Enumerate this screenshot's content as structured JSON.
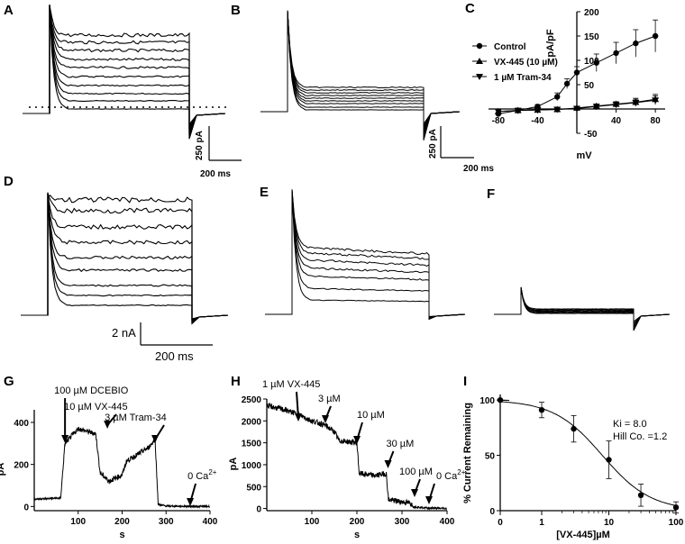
{
  "panels": {
    "a": "A",
    "b": "B",
    "c": "C",
    "d": "D",
    "e": "E",
    "f": "F",
    "g": "G",
    "h": "H",
    "i": "I"
  },
  "scalebars": {
    "a_y": "250 pA",
    "a_x": "200 ms",
    "b_y": "250 pA",
    "b_x": "200 ms",
    "def_y": "2 nA",
    "def_x": "200 ms"
  },
  "chart_data": [
    {
      "id": "C",
      "type": "line",
      "xlabel": "mV",
      "ylabel": "pA/pF",
      "x": [
        -80,
        -60,
        -40,
        -20,
        0,
        20,
        40,
        60,
        80
      ],
      "xlim": [
        -90,
        90
      ],
      "ylim": [
        -50,
        200
      ],
      "xticks": [
        -80,
        -40,
        40,
        80
      ],
      "yticks": [
        -50,
        50,
        100,
        150,
        200
      ],
      "series": [
        {
          "name": "Control",
          "marker": "circle",
          "values": [
            -10,
            -3,
            5,
            25,
            52,
            75,
            95,
            115,
            135,
            150
          ],
          "x": [
            -80,
            -60,
            -40,
            -20,
            -10,
            0,
            20,
            40,
            60,
            80
          ],
          "err": [
            4,
            3,
            4,
            8,
            10,
            12,
            18,
            22,
            28,
            33
          ]
        },
        {
          "name": "VX-445 (10 µM)",
          "marker": "triangle-up",
          "values": [
            -5,
            -3,
            -2,
            -1,
            2,
            6,
            10,
            14,
            20
          ],
          "err": [
            2,
            2,
            2,
            2,
            3,
            4,
            5,
            8,
            10
          ]
        },
        {
          "name": "1 µM Tram-34",
          "marker": "triangle-down",
          "values": [
            -5,
            -3,
            -2,
            -1,
            1,
            5,
            9,
            13,
            18
          ],
          "err": [
            2,
            2,
            2,
            2,
            3,
            4,
            5,
            7,
            9
          ]
        }
      ]
    },
    {
      "id": "G",
      "type": "line",
      "xlabel": "s",
      "ylabel": "pA",
      "xlim": [
        0,
        400
      ],
      "ylim": [
        -20,
        460
      ],
      "xticks": [
        100,
        200,
        300,
        400
      ],
      "yticks": [
        0,
        200,
        400
      ],
      "series": [
        {
          "name": "current",
          "x": [
            0,
            60,
            70,
            100,
            140,
            150,
            170,
            200,
            210,
            260,
            275,
            282,
            300,
            400
          ],
          "values": [
            35,
            40,
            300,
            370,
            345,
            160,
            120,
            150,
            215,
            280,
            320,
            10,
            2,
            0
          ]
        }
      ],
      "annotations": [
        {
          "text": "100 µM DCEBIO",
          "x": 70
        },
        {
          "text": "10 µM VX-445",
          "x": 150
        },
        {
          "text": "3 µM Tram-34",
          "x": 275
        },
        {
          "text": "0 Ca",
          "sup": "2+",
          "x": 355
        }
      ]
    },
    {
      "id": "H",
      "type": "line",
      "xlabel": "s",
      "ylabel": "pA",
      "xlim": [
        0,
        400
      ],
      "ylim": [
        -50,
        2500
      ],
      "xticks": [
        100,
        200,
        300,
        400
      ],
      "yticks": [
        0,
        500,
        1000,
        1500,
        2000,
        2500
      ],
      "series": [
        {
          "name": "current",
          "x": [
            0,
            40,
            70,
            100,
            130,
            150,
            160,
            200,
            205,
            240,
            265,
            270,
            320,
            325,
            360,
            400
          ],
          "values": [
            2350,
            2250,
            2150,
            2000,
            1900,
            1750,
            1550,
            1500,
            800,
            750,
            800,
            200,
            120,
            40,
            10,
            0
          ]
        }
      ],
      "annotations": [
        {
          "text": "1 µM VX-445",
          "x": 70
        },
        {
          "text": "3 µM",
          "x": 130
        },
        {
          "text": "10 µM",
          "x": 200
        },
        {
          "text": "30 µM",
          "x": 265
        },
        {
          "text": "100 µM",
          "x": 320
        },
        {
          "text": "0 Ca",
          "sup": "2+",
          "x": 360
        }
      ]
    },
    {
      "id": "I",
      "type": "scatter",
      "xlabel": "[VX-445]µM",
      "ylabel": "% Current Remaining",
      "xscale": "log",
      "xticks": [
        0,
        1,
        10,
        100
      ],
      "yticks": [
        0,
        50,
        100
      ],
      "ylim": [
        0,
        105
      ],
      "x": [
        0,
        1,
        3,
        10,
        30,
        100
      ],
      "values": [
        100,
        91,
        74,
        46,
        14,
        3
      ],
      "err": [
        0,
        7,
        12,
        17,
        10,
        5
      ],
      "fit": {
        "Ki": 8.0,
        "hill": 1.2
      },
      "annotations": [
        "Ki = 8.0",
        "Hill Co. =1.2"
      ]
    }
  ]
}
